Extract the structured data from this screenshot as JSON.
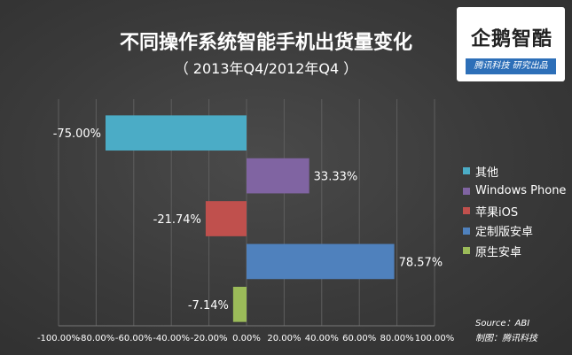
{
  "header": {
    "title": "不同操作系统智能手机出货量变化",
    "subtitle": "（ 2013年Q4/2012年Q4 ）"
  },
  "logo": {
    "name": "企鹅智酷",
    "tagline": "腾讯科技  研究出品"
  },
  "source": {
    "line1": "Source：ABI",
    "line2": "制图：腾讯科技"
  },
  "chart_data": {
    "type": "bar",
    "orientation": "horizontal",
    "title": "不同操作系统智能手机出货量变化",
    "subtitle": "（ 2013年Q4/2012年Q4 ）",
    "categories": [
      "其他",
      "Windows Phone",
      "苹果iOS",
      "定制版安卓",
      "原生安卓"
    ],
    "values": [
      -75.0,
      33.33,
      -21.74,
      78.57,
      -7.14
    ],
    "data_labels": [
      "-75.00%",
      "33.33%",
      "-21.74%",
      "78.57%",
      "-7.14%"
    ],
    "colors": [
      "#4bacc6",
      "#8064a2",
      "#c0504d",
      "#4f81bd",
      "#9bbb59"
    ],
    "xlim": [
      -100,
      100
    ],
    "x_ticks": [
      -100,
      -80,
      -60,
      -40,
      -20,
      0,
      20,
      40,
      60,
      80,
      100
    ],
    "x_tick_labels": [
      "-100.00%",
      "-80.00%",
      "-60.00%",
      "-40.00%",
      "-20.00%",
      "0.00%",
      "20.00%",
      "40.00%",
      "60.00%",
      "80.00%",
      "100.00%"
    ],
    "grid": true,
    "legend_position": "right"
  }
}
